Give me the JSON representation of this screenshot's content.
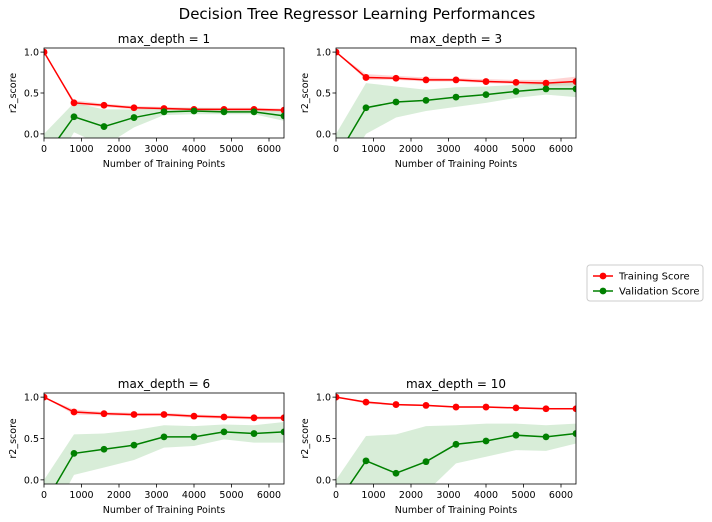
{
  "figure": {
    "title": "Decision Tree Regressor Learning Performances"
  },
  "legend": {
    "placement": "right",
    "entries": [
      "Training Score",
      "Validation Score"
    ]
  },
  "colors": {
    "training": "#ff0000",
    "validation": "#008000",
    "training_band": "#ffaaaa",
    "validation_band": "#b2dbb2"
  },
  "chart_data": [
    {
      "type": "line",
      "title": "max_depth = 1",
      "xlabel": "Number of Training Points",
      "ylabel": "r2_score",
      "xlim": [
        0,
        6400
      ],
      "ylim": [
        -0.05,
        1.05
      ],
      "xticks": [
        0,
        1000,
        2000,
        3000,
        4000,
        5000,
        6000
      ],
      "yticks": [
        0.0,
        0.5,
        1.0
      ],
      "grid": false,
      "x": [
        1,
        800,
        1600,
        2400,
        3200,
        4000,
        4800,
        5600,
        6400
      ],
      "series": [
        {
          "name": "Training Score",
          "values": [
            1.0,
            0.38,
            0.35,
            0.32,
            0.31,
            0.3,
            0.3,
            0.3,
            0.29
          ],
          "band_low": [
            1.0,
            0.35,
            0.33,
            0.3,
            0.29,
            0.28,
            0.28,
            0.28,
            0.27
          ],
          "band_high": [
            1.0,
            0.41,
            0.37,
            0.34,
            0.33,
            0.32,
            0.32,
            0.32,
            0.31
          ]
        },
        {
          "name": "Validation Score",
          "values": [
            -0.3,
            0.21,
            0.09,
            0.2,
            0.27,
            0.28,
            0.27,
            0.27,
            0.22
          ],
          "band_low": [
            -0.6,
            0.02,
            -0.15,
            0.08,
            0.23,
            0.24,
            0.24,
            0.24,
            0.16
          ],
          "band_high": [
            0.0,
            0.38,
            0.3,
            0.3,
            0.31,
            0.32,
            0.31,
            0.31,
            0.28
          ]
        }
      ]
    },
    {
      "type": "line",
      "title": "max_depth = 3",
      "xlabel": "Number of Training Points",
      "ylabel": "r2_score",
      "xlim": [
        0,
        6400
      ],
      "ylim": [
        -0.05,
        1.05
      ],
      "xticks": [
        0,
        1000,
        2000,
        3000,
        4000,
        5000,
        6000
      ],
      "yticks": [
        0.0,
        0.5,
        1.0
      ],
      "grid": false,
      "x": [
        1,
        800,
        1600,
        2400,
        3200,
        4000,
        4800,
        5600,
        6400
      ],
      "series": [
        {
          "name": "Training Score",
          "values": [
            1.0,
            0.69,
            0.68,
            0.66,
            0.66,
            0.64,
            0.63,
            0.62,
            0.64
          ],
          "band_low": [
            1.0,
            0.66,
            0.66,
            0.64,
            0.64,
            0.62,
            0.61,
            0.59,
            0.59
          ],
          "band_high": [
            1.0,
            0.73,
            0.71,
            0.69,
            0.68,
            0.67,
            0.66,
            0.66,
            0.7
          ]
        },
        {
          "name": "Validation Score",
          "values": [
            -0.3,
            0.32,
            0.39,
            0.41,
            0.45,
            0.48,
            0.52,
            0.55,
            0.55
          ],
          "band_low": [
            -0.6,
            0.0,
            0.2,
            0.28,
            0.33,
            0.38,
            0.44,
            0.48,
            0.45
          ],
          "band_high": [
            0.0,
            0.62,
            0.58,
            0.54,
            0.57,
            0.58,
            0.6,
            0.62,
            0.65
          ]
        }
      ]
    },
    {
      "type": "line",
      "title": "max_depth = 6",
      "xlabel": "Number of Training Points",
      "ylabel": "r2_score",
      "xlim": [
        0,
        6400
      ],
      "ylim": [
        -0.05,
        1.05
      ],
      "xticks": [
        0,
        1000,
        2000,
        3000,
        4000,
        5000,
        6000
      ],
      "yticks": [
        0.0,
        0.5,
        1.0
      ],
      "grid": false,
      "x": [
        1,
        800,
        1600,
        2400,
        3200,
        4000,
        4800,
        5600,
        6400
      ],
      "series": [
        {
          "name": "Training Score",
          "values": [
            1.0,
            0.82,
            0.8,
            0.79,
            0.79,
            0.77,
            0.76,
            0.75,
            0.75
          ],
          "band_low": [
            1.0,
            0.79,
            0.78,
            0.77,
            0.77,
            0.75,
            0.74,
            0.73,
            0.73
          ],
          "band_high": [
            1.0,
            0.85,
            0.82,
            0.81,
            0.81,
            0.79,
            0.78,
            0.77,
            0.77
          ]
        },
        {
          "name": "Validation Score",
          "values": [
            -0.3,
            0.32,
            0.37,
            0.42,
            0.52,
            0.52,
            0.58,
            0.56,
            0.58
          ],
          "band_low": [
            -0.6,
            0.06,
            0.15,
            0.24,
            0.39,
            0.41,
            0.49,
            0.45,
            0.45
          ],
          "band_high": [
            0.0,
            0.55,
            0.56,
            0.6,
            0.66,
            0.65,
            0.67,
            0.66,
            0.7
          ]
        }
      ]
    },
    {
      "type": "line",
      "title": "max_depth = 10",
      "xlabel": "Number of Training Points",
      "ylabel": "r2_score",
      "xlim": [
        0,
        6400
      ],
      "ylim": [
        -0.05,
        1.05
      ],
      "xticks": [
        0,
        1000,
        2000,
        3000,
        4000,
        5000,
        6000
      ],
      "yticks": [
        0.0,
        0.5,
        1.0
      ],
      "grid": false,
      "x": [
        1,
        800,
        1600,
        2400,
        3200,
        4000,
        4800,
        5600,
        6400
      ],
      "series": [
        {
          "name": "Training Score",
          "values": [
            1.0,
            0.94,
            0.91,
            0.9,
            0.88,
            0.88,
            0.87,
            0.86,
            0.86
          ],
          "band_low": [
            1.0,
            0.92,
            0.9,
            0.89,
            0.87,
            0.87,
            0.86,
            0.85,
            0.85
          ],
          "band_high": [
            1.0,
            0.95,
            0.92,
            0.91,
            0.89,
            0.89,
            0.88,
            0.87,
            0.87
          ]
        },
        {
          "name": "Validation Score",
          "values": [
            -0.3,
            0.23,
            0.08,
            0.22,
            0.43,
            0.47,
            0.54,
            0.52,
            0.56
          ],
          "band_low": [
            -0.6,
            -0.1,
            -0.35,
            -0.15,
            0.2,
            0.28,
            0.36,
            0.35,
            0.44
          ],
          "band_high": [
            0.0,
            0.53,
            0.55,
            0.65,
            0.66,
            0.68,
            0.68,
            0.66,
            0.68
          ]
        }
      ]
    }
  ]
}
